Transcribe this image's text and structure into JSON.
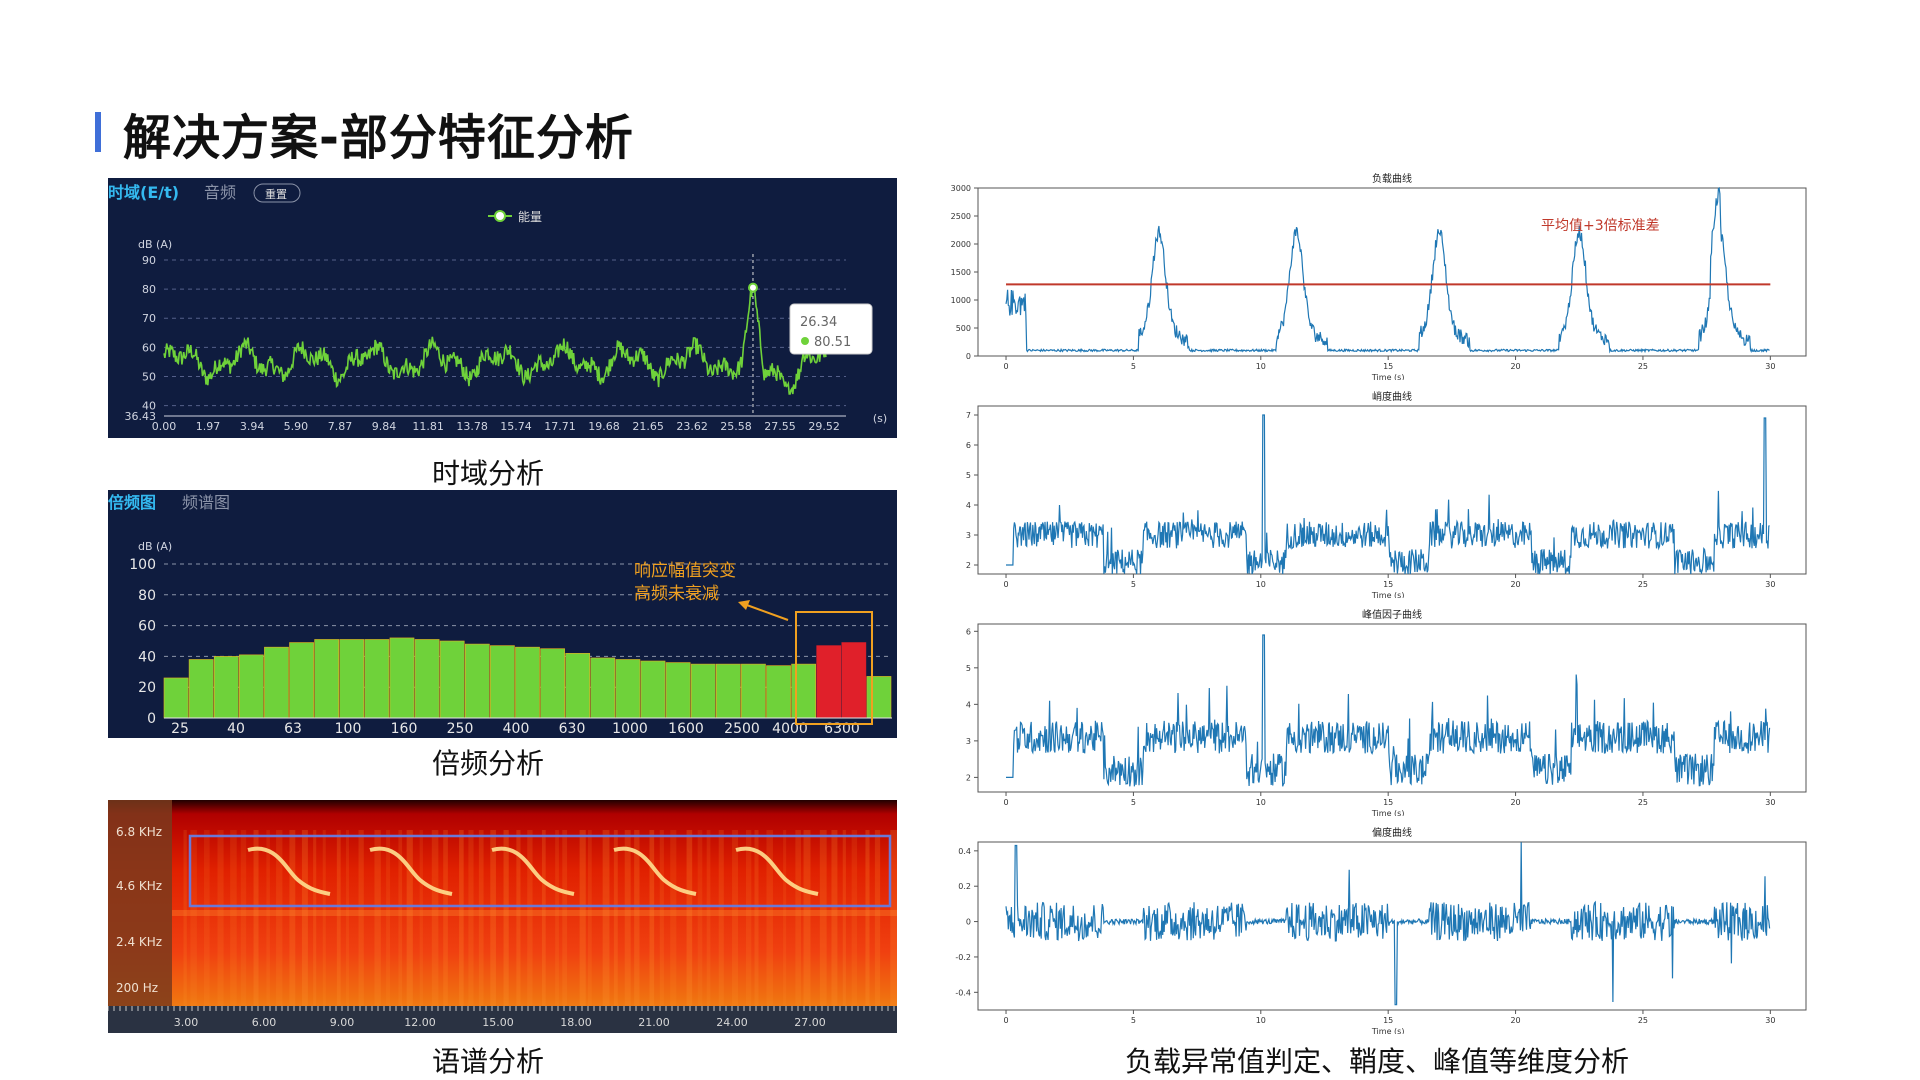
{
  "page_title": "解决方案-部分特征分析",
  "captions": {
    "time_domain": "时域分析",
    "octave": "倍频分析",
    "spectrogram": "语谱分析",
    "right": "负载异常值判定、鞘度、峰值等维度分析"
  },
  "colors": {
    "accent": "#3f6fd8",
    "panel_bg": "#0f1c3f",
    "green": "#6fd23a",
    "red": "#e0202a",
    "orange": "#f0a020",
    "blue_line": "#1f77b4",
    "threshold_red": "#c0392b"
  },
  "chart_data": [
    {
      "id": "time-domain",
      "type": "line",
      "tabs": [
        "时域(E/t)",
        "音频",
        "重置"
      ],
      "legend": "能量",
      "ylabel": "dB (A)",
      "xlabel_unit": "(s)",
      "ylim": [
        36.43,
        90
      ],
      "yticks": [
        40,
        50,
        60,
        70,
        80,
        90
      ],
      "ymin_label": "36.43",
      "xticks": [
        "0.00",
        "1.97",
        "3.94",
        "5.90",
        "7.87",
        "9.84",
        "11.81",
        "13.78",
        "15.74",
        "17.71",
        "19.68",
        "21.65",
        "23.62",
        "25.58",
        "27.55",
        "29.52"
      ],
      "xlim": [
        0,
        30.5
      ],
      "series_description_values": {
        "base": 55,
        "amplitude": 6,
        "peak_x": 26.34,
        "peak_y": 80.51
      },
      "tooltip": {
        "x": "26.34",
        "y": "80.51"
      }
    },
    {
      "id": "octave",
      "type": "bar",
      "tabs": [
        "倍频图",
        "频谱图"
      ],
      "ylabel": "dB (A)",
      "ylim": [
        0,
        100
      ],
      "yticks": [
        0,
        20,
        40,
        60,
        80,
        100
      ],
      "category_labels": [
        "25",
        "40",
        "63",
        "100",
        "160",
        "250",
        "400",
        "630",
        "1000",
        "1600",
        "2500",
        "4000",
        "6300"
      ],
      "values": [
        26,
        38,
        40,
        41,
        46,
        49,
        51,
        51,
        51,
        52,
        51,
        50,
        48,
        47,
        46,
        45,
        42,
        39,
        38,
        37,
        36,
        35,
        35,
        35,
        34,
        35,
        47,
        49,
        27
      ],
      "highlight_indices": [
        26,
        27
      ],
      "annotation": [
        "响应幅值突变",
        "高频未衰减"
      ]
    },
    {
      "id": "spectrogram",
      "type": "heatmap",
      "yticks": [
        "6.8 KHz",
        "4.6 KHz",
        "2.4 KHz",
        "200 Hz"
      ],
      "xticks": [
        "3.00",
        "6.00",
        "9.00",
        "12.00",
        "15.00",
        "18.00",
        "21.00",
        "24.00",
        "27.00"
      ]
    },
    {
      "id": "load",
      "type": "line",
      "title": "负载曲线",
      "xlabel": "Time (s)",
      "xticks": [
        0,
        5,
        10,
        15,
        20,
        25,
        30
      ],
      "yticks": [
        0,
        500,
        1000,
        1500,
        2000,
        2500,
        3000
      ],
      "ylim": [
        0,
        3000
      ],
      "threshold": 1280,
      "threshold_label": "平均值+3倍标准差"
    },
    {
      "id": "kurtosis",
      "type": "line",
      "title": "峭度曲线",
      "xlabel": "Time (s)",
      "xticks": [
        0,
        5,
        10,
        15,
        20,
        25,
        30
      ],
      "yticks": [
        2,
        3,
        4,
        5,
        6,
        7
      ],
      "ylim": [
        1.7,
        7.3
      ]
    },
    {
      "id": "crest",
      "type": "line",
      "title": "峰值因子曲线",
      "xlabel": "Time (s)",
      "xticks": [
        0,
        5,
        10,
        15,
        20,
        25,
        30
      ],
      "yticks": [
        2,
        3,
        4,
        5,
        6
      ],
      "ylim": [
        1.6,
        6.2
      ]
    },
    {
      "id": "skewness",
      "type": "line",
      "title": "偏度曲线",
      "xlabel": "Time (s)",
      "xticks": [
        0,
        5,
        10,
        15,
        20,
        25,
        30
      ],
      "yticks": [
        -0.4,
        -0.2,
        0.0,
        0.2,
        0.4
      ],
      "ylim": [
        -0.5,
        0.45
      ]
    }
  ]
}
